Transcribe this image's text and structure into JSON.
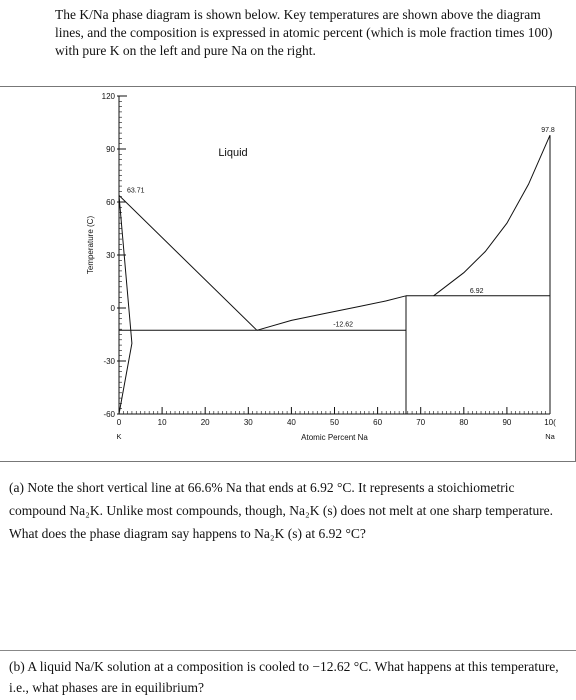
{
  "intro": {
    "text": "The K/Na phase diagram is shown below. Key temperatures are shown above the diagram lines, and the composition is expressed in atomic percent (which is mole fraction times 100) with pure K on the left and pure Na on the right."
  },
  "chart_data": {
    "type": "line",
    "ylabel": "Temperature (C)",
    "xlabel": "Atomic Percent Na",
    "xlim": [
      0,
      100
    ],
    "ylim": [
      -60,
      120
    ],
    "x_ticks": [
      "0",
      "10",
      "20",
      "30",
      "40",
      "50",
      "60",
      "70",
      "80",
      "90",
      "10("
    ],
    "y_ticks": [
      "120",
      "90",
      "60",
      "30",
      "0",
      "-30",
      "-60"
    ],
    "endpoint_labels": {
      "left": "K",
      "right": "Na"
    },
    "region_label": "Liquid",
    "annotations": [
      {
        "text": "63.71",
        "x": 0,
        "y": 63.71
      },
      {
        "text": "97.8",
        "x": 100,
        "y": 97.8
      },
      {
        "text": "6.92",
        "x": 83,
        "y": 6.92
      },
      {
        "text": "-12.62",
        "x": 52,
        "y": -12.62
      }
    ],
    "lines": [
      {
        "x": [
          0,
          32
        ],
        "y": [
          63.71,
          -12.62
        ]
      },
      {
        "x": [
          32,
          40,
          48,
          56,
          62,
          66.6
        ],
        "y": [
          -12.62,
          -7,
          -3,
          1,
          4,
          6.92
        ]
      },
      {
        "x": [
          66.6,
          100
        ],
        "y": [
          6.92,
          6.92
        ]
      },
      {
        "x": [
          73,
          80,
          85,
          90,
          95,
          100
        ],
        "y": [
          6.92,
          20,
          32,
          48,
          70,
          97.8
        ]
      },
      {
        "x": [
          0,
          66.6
        ],
        "y": [
          -12.62,
          -12.62
        ]
      },
      {
        "x": [
          66.6,
          66.6
        ],
        "y": [
          -60,
          6.92
        ]
      },
      {
        "x": [
          100,
          100
        ],
        "y": [
          -60,
          97.8
        ]
      },
      {
        "x": [
          0,
          3,
          0
        ],
        "y": [
          63.71,
          -20,
          -60
        ]
      }
    ]
  },
  "question_a": {
    "text": "(a) Note the short vertical line at 66.6% Na that ends at 6.92 °C. It represents a stoichiometric compound Na₂K. Unlike most compounds, though, Na₂K (s) does not melt at one sharp temperature. What does the phase diagram say happens to Na₂K (s) at 6.92 °C?"
  },
  "question_b": {
    "text": "(b) A liquid Na/K solution at a composition is cooled to −12.62 °C. What happens at this temperature, i.e., what phases are in equilibrium?"
  }
}
